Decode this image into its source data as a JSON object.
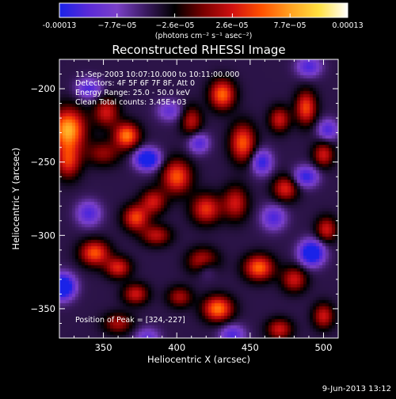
{
  "colorbar": {
    "tick_labels": [
      "-0.00013",
      "−7.7e−05",
      "−2.6e−05",
      "2.6e−05",
      "7.7e−05",
      "0.00013"
    ],
    "unit_label": "(photons cm⁻² s⁻¹ asec⁻²)"
  },
  "plot": {
    "title": "Reconstructed RHESSI Image",
    "annotations": [
      "11-Sep-2003 10:07:10.000 to 10:11:00.000",
      "Detectors: 4F 5F 6F 7F 8F, Att 0",
      "Energy Range: 25.0 - 50.0 keV",
      "Clean    Total counts: 3.45E+03"
    ],
    "peak_label": "Position of Peak = [324,-227]"
  },
  "footer": {
    "timestamp": "9-Jun-2013 13:12"
  },
  "chart_data": {
    "type": "heatmap",
    "title": "Reconstructed RHESSI Image",
    "xlabel": "Heliocentric X (arcsec)",
    "ylabel": "Heliocentric Y (arcsec)",
    "xlim": [
      320,
      510
    ],
    "ylim": [
      -370,
      -180
    ],
    "x_ticks": [
      350,
      400,
      450,
      500
    ],
    "x_tick_labels": [
      "350",
      "400",
      "450",
      "500"
    ],
    "y_ticks": [
      -200,
      -250,
      -300,
      -350
    ],
    "y_tick_labels": [
      "−200",
      "−250",
      "−300",
      "−350"
    ],
    "colormap": "hot-metal (blue → purple → black → red → orange → yellow → white)",
    "color_range": [
      -0.00013,
      0.00013
    ],
    "grid": false,
    "peak_position": [
      324,
      -227
    ],
    "colormap_stops": [
      "#1a22e8",
      "#5a2ad8",
      "#7a40c8",
      "#3a1a60",
      "#000000",
      "#7a0000",
      "#d01010",
      "#ff5000",
      "#ffa020",
      "#ffe040",
      "#ffffff"
    ],
    "blobs": [
      {
        "x": 326,
        "y": -228,
        "v": 1.0,
        "sx": 8,
        "sy": 10
      },
      {
        "x": 326,
        "y": -250,
        "v": 0.6,
        "sx": 6,
        "sy": 8
      },
      {
        "x": 352,
        "y": -216,
        "v": 0.55,
        "sx": 6,
        "sy": 7
      },
      {
        "x": 366,
        "y": -232,
        "v": 0.85,
        "sx": 6,
        "sy": 6
      },
      {
        "x": 350,
        "y": -244,
        "v": 0.4,
        "sx": 8,
        "sy": 6
      },
      {
        "x": 410,
        "y": -222,
        "v": 0.5,
        "sx": 5,
        "sy": 7
      },
      {
        "x": 431,
        "y": -204,
        "v": 0.8,
        "sx": 6,
        "sy": 7
      },
      {
        "x": 445,
        "y": -237,
        "v": 0.75,
        "sx": 6,
        "sy": 9
      },
      {
        "x": 470,
        "y": -221,
        "v": 0.55,
        "sx": 5,
        "sy": 6
      },
      {
        "x": 488,
        "y": -213,
        "v": 0.7,
        "sx": 5,
        "sy": 8
      },
      {
        "x": 500,
        "y": -245,
        "v": 0.55,
        "sx": 5,
        "sy": 6
      },
      {
        "x": 400,
        "y": -260,
        "v": 0.75,
        "sx": 7,
        "sy": 8
      },
      {
        "x": 384,
        "y": -277,
        "v": 0.55,
        "sx": 6,
        "sy": 6
      },
      {
        "x": 372,
        "y": -288,
        "v": 0.7,
        "sx": 6,
        "sy": 6
      },
      {
        "x": 386,
        "y": -300,
        "v": 0.5,
        "sx": 7,
        "sy": 5
      },
      {
        "x": 420,
        "y": -282,
        "v": 0.65,
        "sx": 7,
        "sy": 7
      },
      {
        "x": 440,
        "y": -278,
        "v": 0.55,
        "sx": 6,
        "sy": 8
      },
      {
        "x": 474,
        "y": -268,
        "v": 0.6,
        "sx": 6,
        "sy": 6
      },
      {
        "x": 502,
        "y": -296,
        "v": 0.55,
        "sx": 5,
        "sy": 6
      },
      {
        "x": 344,
        "y": -312,
        "v": 0.75,
        "sx": 7,
        "sy": 6
      },
      {
        "x": 360,
        "y": -322,
        "v": 0.6,
        "sx": 6,
        "sy": 5
      },
      {
        "x": 418,
        "y": -318,
        "v": 0.65,
        "sx": 7,
        "sy": 6
      },
      {
        "x": 456,
        "y": -322,
        "v": 0.8,
        "sx": 7,
        "sy": 6
      },
      {
        "x": 480,
        "y": -330,
        "v": 0.55,
        "sx": 6,
        "sy": 6
      },
      {
        "x": 372,
        "y": -340,
        "v": 0.55,
        "sx": 6,
        "sy": 5
      },
      {
        "x": 402,
        "y": -342,
        "v": 0.45,
        "sx": 6,
        "sy": 5
      },
      {
        "x": 428,
        "y": -350,
        "v": 0.85,
        "sx": 7,
        "sy": 6
      },
      {
        "x": 470,
        "y": -364,
        "v": 0.55,
        "sx": 6,
        "sy": 5
      },
      {
        "x": 500,
        "y": -355,
        "v": 0.55,
        "sx": 5,
        "sy": 6
      },
      {
        "x": 360,
        "y": -360,
        "v": 0.45,
        "sx": 7,
        "sy": 5
      },
      {
        "x": 322,
        "y": -335,
        "v": -1.0,
        "sx": 6,
        "sy": 6
      },
      {
        "x": 380,
        "y": -248,
        "v": -0.9,
        "sx": 6,
        "sy": 5
      },
      {
        "x": 415,
        "y": -237,
        "v": -0.5,
        "sx": 5,
        "sy": 5
      },
      {
        "x": 458,
        "y": -250,
        "v": -0.6,
        "sx": 5,
        "sy": 6
      },
      {
        "x": 488,
        "y": -260,
        "v": -0.6,
        "sx": 6,
        "sy": 5
      },
      {
        "x": 503,
        "y": -228,
        "v": -0.5,
        "sx": 5,
        "sy": 5
      },
      {
        "x": 340,
        "y": -285,
        "v": -0.5,
        "sx": 6,
        "sy": 6
      },
      {
        "x": 466,
        "y": -288,
        "v": -0.5,
        "sx": 6,
        "sy": 6
      },
      {
        "x": 492,
        "y": -312,
        "v": -0.9,
        "sx": 6,
        "sy": 6
      },
      {
        "x": 420,
        "y": -322,
        "v": -0.4,
        "sx": 5,
        "sy": 5
      },
      {
        "x": 438,
        "y": -368,
        "v": -0.5,
        "sx": 6,
        "sy": 5
      },
      {
        "x": 380,
        "y": -370,
        "v": -0.4,
        "sx": 6,
        "sy": 5
      },
      {
        "x": 395,
        "y": -215,
        "v": -0.4,
        "sx": 6,
        "sy": 5
      },
      {
        "x": 340,
        "y": -200,
        "v": -0.5,
        "sx": 6,
        "sy": 5
      },
      {
        "x": 490,
        "y": -185,
        "v": -0.5,
        "sx": 6,
        "sy": 5
      }
    ]
  }
}
